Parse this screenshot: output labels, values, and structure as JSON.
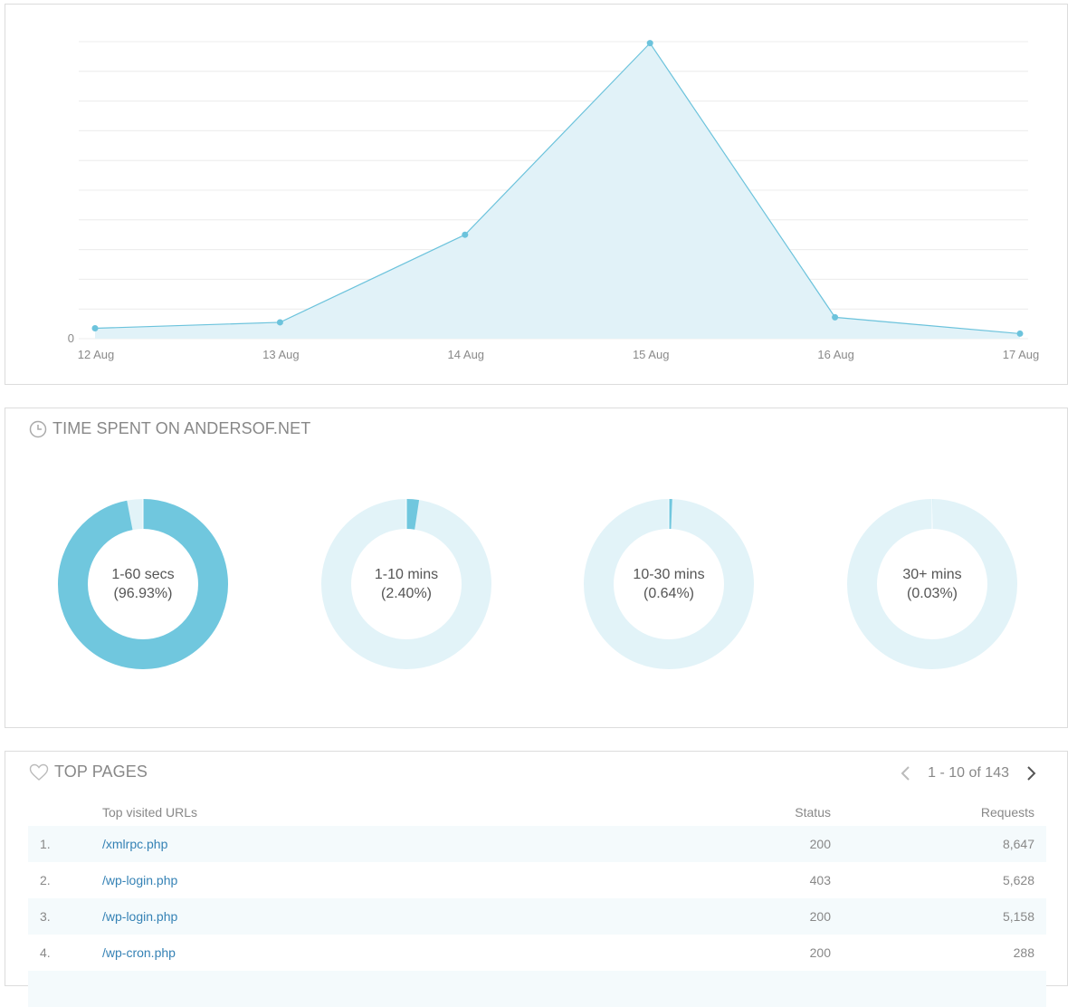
{
  "visits_chart": {
    "chart_data": {
      "type": "area",
      "categories": [
        "12 Aug",
        "13 Aug",
        "14 Aug",
        "15 Aug",
        "16 Aug",
        "17 Aug"
      ],
      "values": [
        35,
        55,
        350,
        995,
        72,
        17
      ],
      "ylim": [
        0,
        1000
      ],
      "y_tick_labels": [
        "0"
      ],
      "grid": true,
      "colors": {
        "line": "#6cc3dc",
        "fill": "#e1f2f8",
        "grid": "#ececec"
      }
    }
  },
  "time_spent": {
    "title": "TIME SPENT ON ANDERSOF.NET",
    "icon": "clock-icon",
    "items": [
      {
        "label": "1-60 secs",
        "percent_text": "(96.93%)",
        "value": 96.93
      },
      {
        "label": "1-10 mins",
        "percent_text": "(2.40%)",
        "value": 2.4
      },
      {
        "label": "10-30 mins",
        "percent_text": "(0.64%)",
        "value": 0.64
      },
      {
        "label": "30+ mins",
        "percent_text": "(0.03%)",
        "value": 0.03
      }
    ],
    "colors": {
      "filled": "#70c7de",
      "track": "#e2f3f8"
    }
  },
  "top_pages": {
    "title": "TOP PAGES",
    "icon": "heart-icon",
    "pager": {
      "text": "1 - 10 of 143",
      "prev_icon": "chevron-left-icon",
      "next_icon": "chevron-right-icon"
    },
    "columns": {
      "url": "Top visited URLs",
      "status": "Status",
      "requests": "Requests"
    },
    "rows": [
      {
        "num": "1.",
        "url": "/xmlrpc.php",
        "status": "200",
        "requests": "8,647"
      },
      {
        "num": "2.",
        "url": "/wp-login.php",
        "status": "403",
        "requests": "5,628"
      },
      {
        "num": "3.",
        "url": "/wp-login.php",
        "status": "200",
        "requests": "5,158"
      },
      {
        "num": "4.",
        "url": "/wp-cron.php",
        "status": "200",
        "requests": "288"
      }
    ]
  }
}
